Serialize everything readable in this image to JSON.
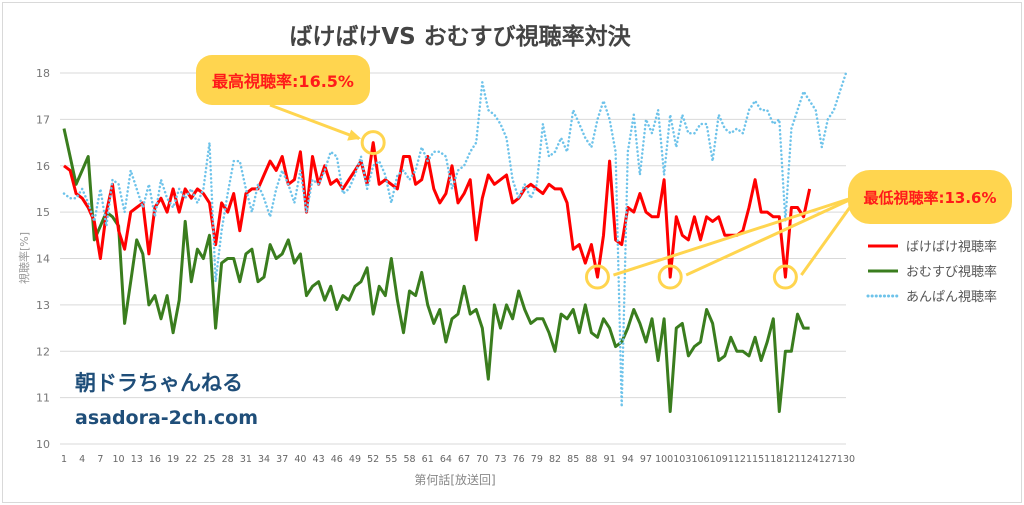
{
  "chart_data": {
    "type": "line",
    "title": "ばけばけVS おむすび視聴率対決",
    "xlabel": "第何話[放送回]",
    "ylabel": "視聴率[%]",
    "ylim": [
      10,
      18
    ],
    "xlim": [
      1,
      130
    ],
    "yticks": [
      "10",
      "11",
      "12",
      "13",
      "14",
      "15",
      "16",
      "17",
      "18"
    ],
    "xtick_step": 3,
    "grid": true,
    "legend_position": "right",
    "series": [
      {
        "name": "ばけばけ視聴率",
        "color": "#ff0000",
        "style": "solid",
        "values": [
          16.0,
          15.9,
          15.4,
          15.3,
          15.1,
          14.8,
          14.0,
          15.0,
          15.6,
          14.6,
          14.2,
          15.0,
          15.1,
          15.2,
          14.1,
          15.1,
          15.3,
          15.0,
          15.5,
          15.0,
          15.5,
          15.3,
          15.5,
          15.4,
          15.2,
          14.3,
          15.2,
          15.0,
          15.4,
          14.6,
          15.4,
          15.5,
          15.5,
          15.8,
          16.1,
          15.9,
          16.2,
          15.6,
          15.7,
          16.3,
          15.0,
          16.2,
          15.6,
          16.0,
          15.6,
          15.7,
          15.5,
          15.7,
          15.9,
          16.1,
          15.6,
          16.5,
          15.6,
          15.7,
          15.6,
          15.5,
          16.2,
          16.2,
          15.6,
          15.7,
          16.2,
          15.5,
          15.2,
          15.4,
          16.0,
          15.2,
          15.4,
          15.7,
          14.4,
          15.3,
          15.8,
          15.6,
          15.7,
          15.8,
          15.2,
          15.3,
          15.5,
          15.6,
          15.5,
          15.4,
          15.6,
          15.5,
          15.5,
          15.2,
          14.2,
          14.3,
          13.9,
          14.3,
          13.6,
          14.5,
          16.1,
          14.4,
          14.3,
          15.1,
          15.0,
          15.4,
          15.0,
          14.9,
          14.9,
          15.7,
          13.6,
          14.9,
          14.5,
          14.4,
          14.9,
          14.4,
          14.9,
          14.8,
          14.9,
          14.5,
          14.5,
          14.5,
          14.6,
          15.1,
          15.7,
          15.0,
          15.0,
          14.9,
          14.9,
          13.6,
          15.1,
          15.1,
          14.9,
          15.5
        ]
      },
      {
        "name": "おむすび視聴率",
        "color": "#3a7d1e",
        "style": "solid",
        "values": [
          16.8,
          16.2,
          15.6,
          15.9,
          16.2,
          14.4,
          14.7,
          15.0,
          14.9,
          14.7,
          12.6,
          13.5,
          14.4,
          14.1,
          13.0,
          13.2,
          12.7,
          13.2,
          12.4,
          13.1,
          14.8,
          13.5,
          14.2,
          14.0,
          14.5,
          12.5,
          13.9,
          14.0,
          14.0,
          13.5,
          14.1,
          14.2,
          13.5,
          13.6,
          14.3,
          14.0,
          14.1,
          14.4,
          13.9,
          14.1,
          13.2,
          13.4,
          13.5,
          13.1,
          13.4,
          12.9,
          13.2,
          13.1,
          13.4,
          13.5,
          13.8,
          12.8,
          13.4,
          13.2,
          14.0,
          13.1,
          12.4,
          13.3,
          13.2,
          13.7,
          13.0,
          12.6,
          12.9,
          12.2,
          12.7,
          12.8,
          13.4,
          12.8,
          12.9,
          12.5,
          11.4,
          13.0,
          12.5,
          13.0,
          12.7,
          13.3,
          12.9,
          12.6,
          12.7,
          12.7,
          12.4,
          12.0,
          12.8,
          12.7,
          12.9,
          12.4,
          13.0,
          12.4,
          12.3,
          12.7,
          12.5,
          12.1,
          12.2,
          12.5,
          12.9,
          12.6,
          12.2,
          12.7,
          11.8,
          12.7,
          10.7,
          12.5,
          12.6,
          11.9,
          12.1,
          12.2,
          12.9,
          12.6,
          11.8,
          11.9,
          12.3,
          12.0,
          12.0,
          11.9,
          12.3,
          11.8,
          12.2,
          12.7,
          10.7,
          12.0,
          12.0,
          12.8,
          12.5,
          12.5
        ]
      },
      {
        "name": "あんぱん視聴率",
        "color": "#6ec3ea",
        "style": "dotted",
        "values": [
          15.4,
          15.3,
          15.3,
          15.5,
          15.2,
          14.8,
          15.5,
          14.7,
          15.7,
          15.6,
          15.0,
          15.9,
          15.5,
          15.1,
          15.6,
          14.9,
          15.7,
          15.3,
          15.1,
          15.5,
          15.3,
          15.5,
          15.2,
          15.5,
          16.5,
          13.5,
          14.6,
          15.4,
          16.1,
          16.1,
          15.5,
          15.0,
          15.6,
          15.3,
          14.9,
          15.5,
          15.9,
          15.6,
          15.2,
          15.9,
          15.0,
          15.7,
          15.6,
          15.9,
          16.3,
          16.2,
          15.4,
          15.5,
          15.8,
          16.2,
          15.5,
          16.0,
          16.1,
          15.8,
          15.2,
          15.8,
          15.9,
          15.7,
          15.9,
          16.4,
          16.1,
          16.3,
          16.3,
          16.2,
          15.5,
          15.9,
          16.0,
          16.3,
          16.5,
          17.8,
          17.2,
          17.1,
          16.9,
          16.6,
          15.7,
          15.3,
          15.6,
          15.3,
          15.6,
          16.9,
          16.2,
          16.3,
          16.6,
          16.3,
          17.2,
          16.9,
          16.6,
          16.4,
          17.0,
          17.4,
          17.0,
          16.3,
          10.8,
          16.3,
          17.1,
          15.8,
          17.0,
          16.7,
          17.2,
          15.8,
          17.1,
          16.4,
          17.1,
          16.7,
          16.7,
          16.9,
          16.9,
          16.1,
          17.1,
          16.8,
          16.7,
          16.8,
          16.7,
          17.2,
          17.4,
          17.2,
          17.2,
          16.9,
          17.0,
          14.8,
          16.8,
          17.2,
          17.6,
          17.4,
          17.2,
          16.4,
          17.0,
          17.2,
          17.6,
          18.0
        ]
      }
    ],
    "annotations": [
      {
        "label": "最高視聴率:16.5%",
        "points": [
          {
            "series": "ばけばけ視聴率",
            "x": 52,
            "y": 16.5
          }
        ]
      },
      {
        "label": "最低視聴率:13.6%",
        "points": [
          {
            "series": "ばけばけ視聴率",
            "x": 89,
            "y": 13.6
          },
          {
            "series": "ばけばけ視聴率",
            "x": 101,
            "y": 13.6
          },
          {
            "series": "ばけばけ視聴率",
            "x": 120,
            "y": 13.6
          }
        ]
      }
    ],
    "highlight_color": "#ffd54f",
    "annotation_text_color": "#ff1a1a"
  },
  "watermark": {
    "name": "朝ドラちゃんねる",
    "url": "asadora-2ch.com",
    "color": "#1f4e79"
  }
}
